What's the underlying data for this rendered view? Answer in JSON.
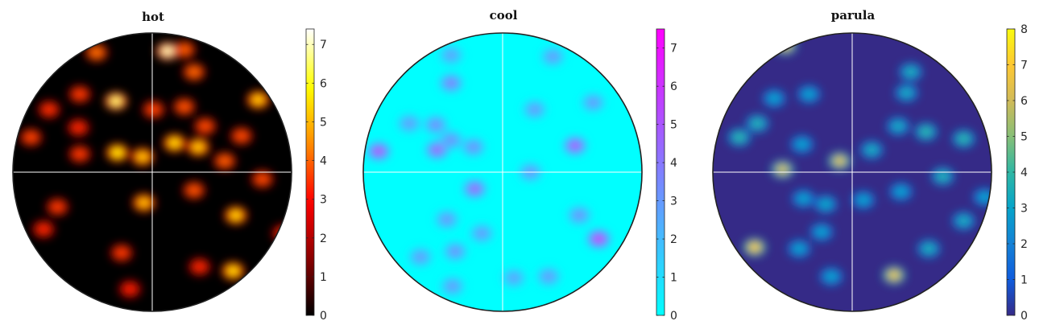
{
  "chart_data": [
    {
      "type": "heatmap",
      "title": "hot",
      "colormap": [
        "#000000",
        "#8b0000",
        "#ff0000",
        "#ff8c00",
        "#ffff00",
        "#ffffff"
      ],
      "colorbar": {
        "min": 0,
        "max": 7.4,
        "ticks": [
          0,
          1,
          2,
          3,
          4,
          5,
          6,
          7
        ]
      },
      "blobs": [
        {
          "x": 0.11,
          "y": 0.87,
          "v": 7.0
        },
        {
          "x": -0.26,
          "y": 0.51,
          "v": 6.6
        },
        {
          "x": -0.25,
          "y": 0.14,
          "v": 5.8
        },
        {
          "x": 0.16,
          "y": 0.21,
          "v": 5.6
        },
        {
          "x": 0.33,
          "y": 0.18,
          "v": 5.4
        },
        {
          "x": 0.76,
          "y": 0.52,
          "v": 5.4
        },
        {
          "x": -0.07,
          "y": 0.11,
          "v": 5.3
        },
        {
          "x": 0.6,
          "y": -0.31,
          "v": 5.5
        },
        {
          "x": 0.58,
          "y": -0.71,
          "v": 5.6
        },
        {
          "x": -0.06,
          "y": -0.22,
          "v": 5.2
        },
        {
          "x": -0.4,
          "y": 0.86,
          "v": 4.2
        },
        {
          "x": 0.23,
          "y": 0.88,
          "v": 4.0
        },
        {
          "x": 0.3,
          "y": 0.72,
          "v": 4.1
        },
        {
          "x": 0.23,
          "y": 0.47,
          "v": 3.9
        },
        {
          "x": 0.01,
          "y": 0.45,
          "v": 3.7
        },
        {
          "x": 0.38,
          "y": 0.33,
          "v": 3.8
        },
        {
          "x": 0.64,
          "y": 0.26,
          "v": 3.8
        },
        {
          "x": 0.52,
          "y": 0.08,
          "v": 4.0
        },
        {
          "x": 0.79,
          "y": -0.05,
          "v": 3.8
        },
        {
          "x": 0.3,
          "y": -0.13,
          "v": 3.9
        },
        {
          "x": -0.87,
          "y": 0.25,
          "v": 3.7
        },
        {
          "x": -0.52,
          "y": 0.56,
          "v": 3.6
        },
        {
          "x": -0.74,
          "y": 0.45,
          "v": 3.5
        },
        {
          "x": -0.53,
          "y": 0.32,
          "v": 3.4
        },
        {
          "x": -0.52,
          "y": 0.13,
          "v": 3.6
        },
        {
          "x": -0.68,
          "y": -0.25,
          "v": 3.6
        },
        {
          "x": -0.78,
          "y": -0.41,
          "v": 3.4
        },
        {
          "x": -0.22,
          "y": -0.58,
          "v": 3.6
        },
        {
          "x": -0.16,
          "y": -0.84,
          "v": 3.3
        },
        {
          "x": 0.34,
          "y": -0.68,
          "v": 3.4
        },
        {
          "x": 0.94,
          "y": -0.44,
          "v": 3.4
        }
      ]
    },
    {
      "type": "heatmap",
      "title": "cool",
      "colormap": [
        "#00ffff",
        "#ff00ff"
      ],
      "colorbar": {
        "min": 0,
        "max": 7.5,
        "ticks": [
          0,
          1,
          2,
          3,
          4,
          5,
          6,
          7
        ]
      },
      "blobs": [
        {
          "x": -0.47,
          "y": 0.16,
          "v": 4.6
        },
        {
          "x": -0.89,
          "y": 0.15,
          "v": 5.2
        },
        {
          "x": 0.52,
          "y": 0.19,
          "v": 5.0
        },
        {
          "x": 0.69,
          "y": -0.48,
          "v": 5.8
        },
        {
          "x": -0.2,
          "y": -0.12,
          "v": 4.6
        },
        {
          "x": -0.37,
          "y": 0.64,
          "v": 3.8
        },
        {
          "x": -0.48,
          "y": 0.34,
          "v": 3.4
        },
        {
          "x": -0.37,
          "y": 0.23,
          "v": 3.3
        },
        {
          "x": -0.21,
          "y": 0.18,
          "v": 3.3
        },
        {
          "x": 0.36,
          "y": 0.83,
          "v": 3.0
        },
        {
          "x": 0.23,
          "y": 0.45,
          "v": 3.0
        },
        {
          "x": 0.65,
          "y": 0.5,
          "v": 3.0
        },
        {
          "x": 0.2,
          "y": 0.0,
          "v": 3.1
        },
        {
          "x": -0.4,
          "y": -0.34,
          "v": 3.1
        },
        {
          "x": -0.34,
          "y": -0.57,
          "v": 3.2
        },
        {
          "x": -0.15,
          "y": -0.44,
          "v": 3.0
        },
        {
          "x": 0.55,
          "y": -0.31,
          "v": 3.2
        },
        {
          "x": 0.33,
          "y": -0.75,
          "v": 3.0
        },
        {
          "x": -0.59,
          "y": -0.61,
          "v": 3.0
        },
        {
          "x": -0.37,
          "y": 0.84,
          "v": 2.8
        },
        {
          "x": -0.36,
          "y": -0.82,
          "v": 3.0
        },
        {
          "x": 0.08,
          "y": -0.76,
          "v": 2.8
        },
        {
          "x": -0.67,
          "y": 0.35,
          "v": 2.9
        }
      ]
    },
    {
      "type": "heatmap",
      "title": "parula",
      "colormap": [
        "#352a87",
        "#0f5cdd",
        "#1481d6",
        "#06a4ca",
        "#2eb7a4",
        "#87bf77",
        "#d1bb59",
        "#fec832",
        "#f9fb0e"
      ],
      "colorbar": {
        "min": 0,
        "max": 8,
        "ticks": [
          0,
          1,
          2,
          3,
          4,
          5,
          6,
          7,
          8
        ]
      },
      "blobs": [
        {
          "x": -0.7,
          "y": -0.54,
          "v": 7.0
        },
        {
          "x": 0.3,
          "y": -0.74,
          "v": 6.7
        },
        {
          "x": -0.48,
          "y": 0.91,
          "v": 6.5
        },
        {
          "x": -0.09,
          "y": 0.08,
          "v": 6.4
        },
        {
          "x": -0.5,
          "y": 0.02,
          "v": 6.2
        },
        {
          "x": -0.81,
          "y": 0.25,
          "v": 4.0
        },
        {
          "x": -0.68,
          "y": 0.35,
          "v": 3.8
        },
        {
          "x": 0.53,
          "y": 0.29,
          "v": 4.0
        },
        {
          "x": 0.8,
          "y": 0.24,
          "v": 4.0
        },
        {
          "x": 0.65,
          "y": -0.03,
          "v": 3.8
        },
        {
          "x": 0.8,
          "y": -0.35,
          "v": 3.5
        },
        {
          "x": 0.42,
          "y": 0.72,
          "v": 3.6
        },
        {
          "x": 0.39,
          "y": 0.57,
          "v": 3.4
        },
        {
          "x": 0.33,
          "y": 0.33,
          "v": 3.4
        },
        {
          "x": 0.55,
          "y": -0.55,
          "v": 3.6
        },
        {
          "x": 0.14,
          "y": 0.16,
          "v": 3.5
        },
        {
          "x": -0.36,
          "y": 0.2,
          "v": 3.0
        },
        {
          "x": -0.56,
          "y": 0.53,
          "v": 3.0
        },
        {
          "x": -0.31,
          "y": 0.56,
          "v": 3.0
        },
        {
          "x": -0.19,
          "y": -0.23,
          "v": 3.2
        },
        {
          "x": -0.35,
          "y": -0.19,
          "v": 3.0
        },
        {
          "x": 0.08,
          "y": -0.2,
          "v": 3.0
        },
        {
          "x": -0.22,
          "y": -0.43,
          "v": 3.0
        },
        {
          "x": 0.35,
          "y": -0.14,
          "v": 3.0
        },
        {
          "x": -0.15,
          "y": -0.75,
          "v": 3.0
        },
        {
          "x": -0.38,
          "y": -0.55,
          "v": 3.0
        },
        {
          "x": 0.95,
          "y": -0.18,
          "v": 3.0
        }
      ]
    }
  ]
}
